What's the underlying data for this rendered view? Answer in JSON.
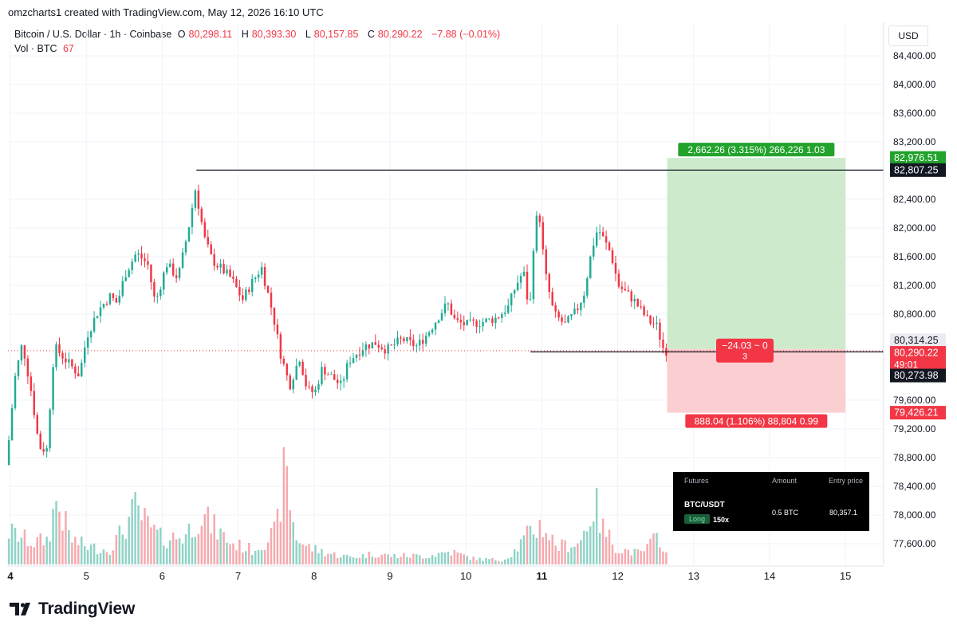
{
  "header": {
    "attribution": "omzcharts1 created with TradingView.com, May 12, 2026 16:10 UTC"
  },
  "legend": {
    "symbol": "Bitcoin / U.S. Dollar · 1h · Coinbase",
    "o_label": "O",
    "o_value": "80,298.11",
    "h_label": "H",
    "h_value": "80,393.30",
    "l_label": "L",
    "l_value": "80,157.85",
    "c_label": "C",
    "c_value": "80,290.22",
    "change": "−7.88 (−0.01%)",
    "vol_label": "Vol · BTC",
    "vol_value": "67"
  },
  "currency": "USD",
  "chart_data": {
    "type": "candlestick",
    "timeframe": "1h",
    "ylim": [
      77450,
      84700
    ],
    "y_ticks": [
      {
        "v": 84400,
        "label": "84,400.00"
      },
      {
        "v": 84000,
        "label": "84,000.00"
      },
      {
        "v": 83600,
        "label": "83,600.00"
      },
      {
        "v": 83200,
        "label": "83,200.00"
      },
      {
        "v": 82400,
        "label": "82,400.00"
      },
      {
        "v": 82000,
        "label": "82,000.00"
      },
      {
        "v": 81600,
        "label": "81,600.00"
      },
      {
        "v": 81200,
        "label": "81,200.00"
      },
      {
        "v": 80800,
        "label": "80,800.00"
      },
      {
        "v": 79600,
        "label": "79,600.00"
      },
      {
        "v": 79200,
        "label": "79,200.00"
      },
      {
        "v": 78800,
        "label": "78,800.00"
      },
      {
        "v": 78400,
        "label": "78,400.00"
      },
      {
        "v": 78000,
        "label": "78,000.00"
      },
      {
        "v": 77600,
        "label": "77,600.00"
      }
    ],
    "x_ticks": [
      {
        "day": 4,
        "label": "4",
        "bold": true
      },
      {
        "day": 5,
        "label": "5"
      },
      {
        "day": 6,
        "label": "6"
      },
      {
        "day": 7,
        "label": "7"
      },
      {
        "day": 8,
        "label": "8"
      },
      {
        "day": 9,
        "label": "9"
      },
      {
        "day": 10,
        "label": "10"
      },
      {
        "day": 11,
        "label": "11",
        "bold": true
      },
      {
        "day": 12,
        "label": "12"
      },
      {
        "day": 13,
        "label": "13"
      },
      {
        "day": 14,
        "label": "14"
      },
      {
        "day": 15,
        "label": "15"
      }
    ],
    "price_path": [
      [
        3.99,
        78700
      ],
      [
        4.1,
        79900
      ],
      [
        4.2,
        80400
      ],
      [
        4.32,
        79700
      ],
      [
        4.42,
        78950
      ],
      [
        4.52,
        78900
      ],
      [
        4.62,
        80350
      ],
      [
        4.78,
        80150
      ],
      [
        4.95,
        79950
      ],
      [
        5.05,
        80500
      ],
      [
        5.2,
        80850
      ],
      [
        5.35,
        81050
      ],
      [
        5.45,
        80950
      ],
      [
        5.55,
        81350
      ],
      [
        5.7,
        81650
      ],
      [
        5.85,
        81500
      ],
      [
        5.95,
        80950
      ],
      [
        6.1,
        81500
      ],
      [
        6.25,
        81300
      ],
      [
        6.38,
        81950
      ],
      [
        6.48,
        82550
      ],
      [
        6.6,
        81850
      ],
      [
        6.7,
        81550
      ],
      [
        6.85,
        81400
      ],
      [
        6.95,
        81300
      ],
      [
        7.1,
        81000
      ],
      [
        7.2,
        81200
      ],
      [
        7.35,
        81450
      ],
      [
        7.5,
        80800
      ],
      [
        7.6,
        80250
      ],
      [
        7.72,
        79800
      ],
      [
        7.85,
        80200
      ],
      [
        7.95,
        79750
      ],
      [
        8.05,
        79700
      ],
      [
        8.15,
        80050
      ],
      [
        8.3,
        79900
      ],
      [
        8.4,
        79800
      ],
      [
        8.5,
        80150
      ],
      [
        8.7,
        80350
      ],
      [
        8.85,
        80400
      ],
      [
        9.0,
        80300
      ],
      [
        9.2,
        80450
      ],
      [
        9.4,
        80350
      ],
      [
        9.55,
        80550
      ],
      [
        9.7,
        80800
      ],
      [
        9.8,
        80950
      ],
      [
        9.9,
        80700
      ],
      [
        10.05,
        80650
      ],
      [
        10.3,
        80700
      ],
      [
        10.45,
        80750
      ],
      [
        10.6,
        80900
      ],
      [
        10.7,
        81200
      ],
      [
        10.8,
        81400
      ],
      [
        10.88,
        80800
      ],
      [
        10.94,
        81900
      ],
      [
        11.0,
        82300
      ],
      [
        11.08,
        81400
      ],
      [
        11.2,
        80800
      ],
      [
        11.35,
        80650
      ],
      [
        11.5,
        80850
      ],
      [
        11.6,
        81100
      ],
      [
        11.7,
        81700
      ],
      [
        11.78,
        82000
      ],
      [
        11.85,
        81850
      ],
      [
        11.95,
        81650
      ],
      [
        12.05,
        81200
      ],
      [
        12.15,
        81100
      ],
      [
        12.25,
        81000
      ],
      [
        12.35,
        80850
      ],
      [
        12.45,
        80700
      ],
      [
        12.55,
        80650
      ],
      [
        12.65,
        80290
      ]
    ],
    "volume_path": [
      [
        4.0,
        45
      ],
      [
        4.3,
        30
      ],
      [
        4.5,
        35
      ],
      [
        4.6,
        90
      ],
      [
        4.8,
        35
      ],
      [
        5.0,
        25
      ],
      [
        5.3,
        20
      ],
      [
        5.5,
        50
      ],
      [
        5.65,
        78
      ],
      [
        5.8,
        55
      ],
      [
        6.0,
        35
      ],
      [
        6.3,
        40
      ],
      [
        6.5,
        70
      ],
      [
        6.7,
        50
      ],
      [
        6.9,
        30
      ],
      [
        7.2,
        20
      ],
      [
        7.5,
        45
      ],
      [
        7.62,
        135
      ],
      [
        7.75,
        40
      ],
      [
        7.9,
        25
      ],
      [
        8.2,
        15
      ],
      [
        8.5,
        10
      ],
      [
        8.8,
        15
      ],
      [
        9.0,
        12
      ],
      [
        9.5,
        12
      ],
      [
        9.8,
        18
      ],
      [
        10.1,
        8
      ],
      [
        10.5,
        6
      ],
      [
        10.65,
        20
      ],
      [
        10.85,
        45
      ],
      [
        11.0,
        55
      ],
      [
        11.2,
        25
      ],
      [
        11.5,
        30
      ],
      [
        11.7,
        85
      ],
      [
        11.8,
        50
      ],
      [
        12.0,
        22
      ],
      [
        12.3,
        15
      ],
      [
        12.55,
        40
      ],
      [
        12.65,
        12
      ]
    ],
    "horizontal_lines": [
      {
        "from_day": 6.45,
        "price": 82807.25,
        "label": "82,807.25"
      },
      {
        "from_day": 10.85,
        "price": 80273.98,
        "label": "80,273.98"
      }
    ],
    "current_price": 80290.22,
    "current_price_label": "80,290.22",
    "countdown": "49:01",
    "upper_price_label": "80,314.25",
    "position": {
      "side": "long",
      "start_day": 12.65,
      "end_day": 15.0,
      "entry": 80314.25,
      "take_profit": 82976.51,
      "take_profit_label": "82,976.51",
      "stop_loss": 79426.21,
      "stop_loss_label": "79,426.21",
      "target_text": "2,662.26 (3.315%) 266,226 1.03",
      "stop_text": "888.04 (1.106%) 88,804 0.99",
      "pnl_text": "−24.03 ~ 0",
      "pnl_sub": "3"
    },
    "colors": {
      "up": "#22ab94",
      "down": "#f23645",
      "vol_up": "#8fd3c6",
      "vol_down": "#f6a9ae",
      "profit_zone": "#cdebcc",
      "loss_zone": "#fbcfd1",
      "profit_tag": "#22a32c",
      "loss_tag": "#f23645",
      "grid": "#f0f3fa"
    }
  },
  "futures_panel": {
    "market_header": "Futures",
    "amount_header": "Amount",
    "entry_header": "Entry price",
    "pair": "BTC/USDT",
    "side": "Long",
    "leverage": "150x",
    "amount": "0.5 BTC",
    "entry": "80,357.1"
  },
  "brand": {
    "name": "TradingView"
  }
}
